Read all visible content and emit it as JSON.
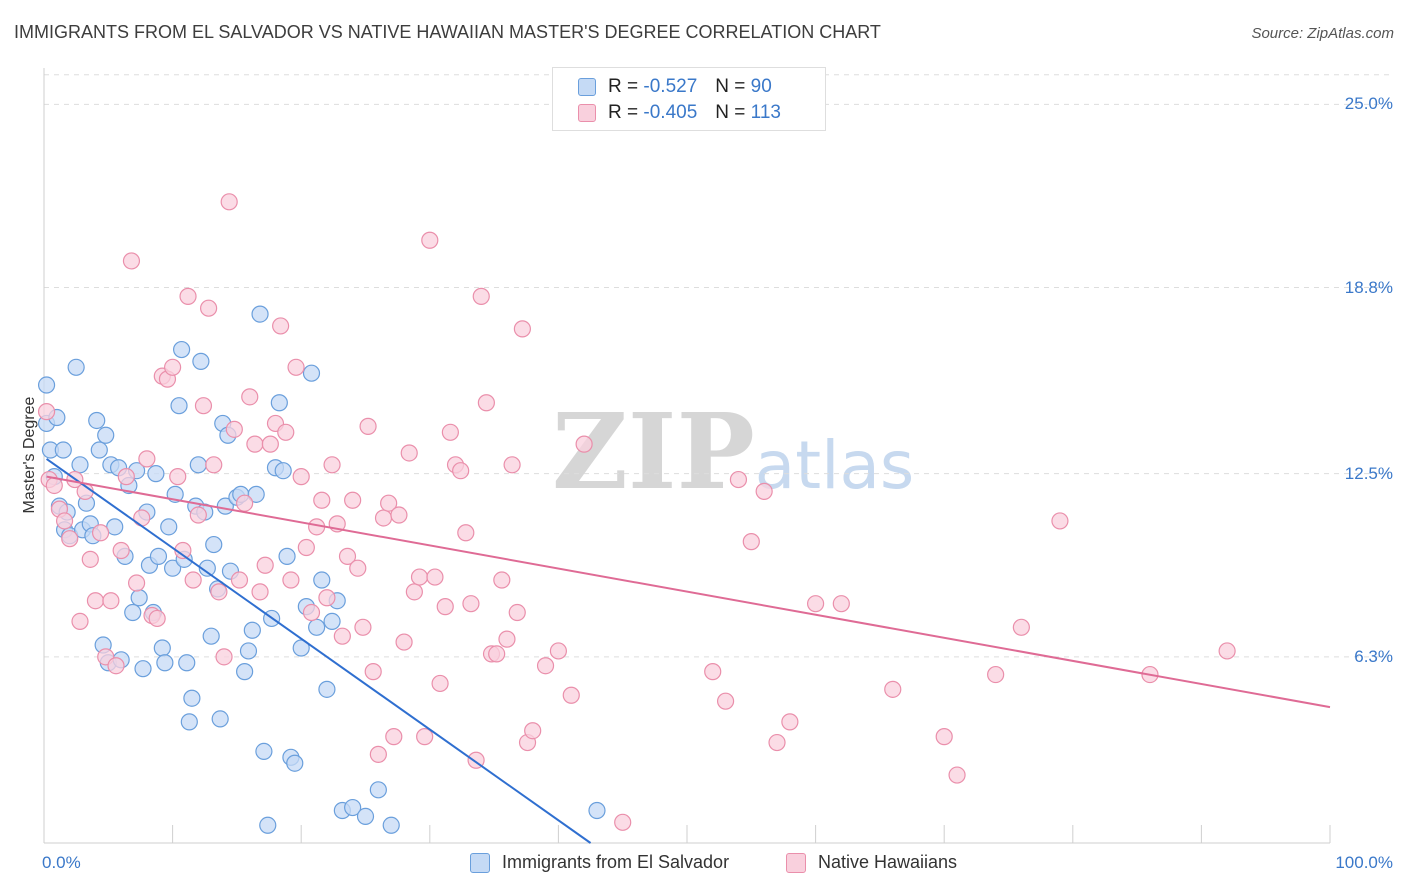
{
  "title": "IMMIGRANTS FROM EL SALVADOR VS NATIVE HAWAIIAN MASTER'S DEGREE CORRELATION CHART",
  "source": "Source: ZipAtlas.com",
  "watermark": {
    "zip": "ZIP",
    "atlas": "atlas"
  },
  "stats": [
    {
      "r_label": "R = ",
      "r_value": "-0.527",
      "n_label": "N = ",
      "n_value": "90"
    },
    {
      "r_label": "R = ",
      "r_value": "-0.405",
      "n_label": "N = ",
      "n_value": "113"
    }
  ],
  "colors": {
    "blue_fill": "#c5daf5",
    "blue_stroke": "#6a9fdc",
    "blue_line": "#2f6fd0",
    "pink_fill": "#f9d0dd",
    "pink_stroke": "#ea8fab",
    "pink_line": "#df6b95",
    "tick_text": "#3a78c9",
    "grid": "#dddddd"
  },
  "chart_data": {
    "type": "scatter",
    "title": "IMMIGRANTS FROM EL SALVADOR VS NATIVE HAWAIIAN MASTER'S DEGREE CORRELATION CHART",
    "xlabel": "",
    "ylabel": "Master's Degree",
    "xlim": [
      0,
      100
    ],
    "ylim": [
      0,
      26.5
    ],
    "x_tick_labels": [
      "0.0%",
      "100.0%"
    ],
    "y_ticks": [
      6.3,
      12.5,
      18.8,
      25.0
    ],
    "y_tick_labels": [
      "6.3%",
      "12.5%",
      "18.8%",
      "25.0%"
    ],
    "legend": [
      "Immigrants from El Salvador",
      "Native Hawaiians"
    ],
    "series": [
      {
        "name": "Immigrants from El Salvador",
        "trend": {
          "x": [
            0.2,
            42.5
          ],
          "y": [
            13.0,
            0
          ]
        },
        "points": [
          [
            0.2,
            15.5
          ],
          [
            0.2,
            14.2
          ],
          [
            0.5,
            13.3
          ],
          [
            0.8,
            12.4
          ],
          [
            1.0,
            14.4
          ],
          [
            1.2,
            11.4
          ],
          [
            1.5,
            13.3
          ],
          [
            1.6,
            10.6
          ],
          [
            1.8,
            11.2
          ],
          [
            2.0,
            10.4
          ],
          [
            2.5,
            16.1
          ],
          [
            2.8,
            12.8
          ],
          [
            3.0,
            10.6
          ],
          [
            3.3,
            11.5
          ],
          [
            3.6,
            10.8
          ],
          [
            3.8,
            10.4
          ],
          [
            4.1,
            14.3
          ],
          [
            4.3,
            13.3
          ],
          [
            4.6,
            6.7
          ],
          [
            4.8,
            13.8
          ],
          [
            5.0,
            6.1
          ],
          [
            5.2,
            12.8
          ],
          [
            5.5,
            10.7
          ],
          [
            5.8,
            12.7
          ],
          [
            6.0,
            6.2
          ],
          [
            6.3,
            9.7
          ],
          [
            6.6,
            12.1
          ],
          [
            6.9,
            7.8
          ],
          [
            7.2,
            12.6
          ],
          [
            7.4,
            8.3
          ],
          [
            7.7,
            5.9
          ],
          [
            8.0,
            11.2
          ],
          [
            8.2,
            9.4
          ],
          [
            8.5,
            7.8
          ],
          [
            8.7,
            12.5
          ],
          [
            8.9,
            9.7
          ],
          [
            9.2,
            6.6
          ],
          [
            9.4,
            6.1
          ],
          [
            9.7,
            10.7
          ],
          [
            10.0,
            9.3
          ],
          [
            10.2,
            11.8
          ],
          [
            10.5,
            14.8
          ],
          [
            10.7,
            16.7
          ],
          [
            10.9,
            9.6
          ],
          [
            11.1,
            6.1
          ],
          [
            11.3,
            4.1
          ],
          [
            11.5,
            4.9
          ],
          [
            11.8,
            11.4
          ],
          [
            12.0,
            12.8
          ],
          [
            12.2,
            16.3
          ],
          [
            12.5,
            11.2
          ],
          [
            12.7,
            9.3
          ],
          [
            13.0,
            7.0
          ],
          [
            13.2,
            10.1
          ],
          [
            13.5,
            8.6
          ],
          [
            13.7,
            4.2
          ],
          [
            13.9,
            14.2
          ],
          [
            14.1,
            11.4
          ],
          [
            14.3,
            13.8
          ],
          [
            14.5,
            9.2
          ],
          [
            15.0,
            11.7
          ],
          [
            15.3,
            11.8
          ],
          [
            15.6,
            5.8
          ],
          [
            15.9,
            6.5
          ],
          [
            16.2,
            7.2
          ],
          [
            16.5,
            11.8
          ],
          [
            16.8,
            17.9
          ],
          [
            17.1,
            3.1
          ],
          [
            17.4,
            0.6
          ],
          [
            17.7,
            7.6
          ],
          [
            18.0,
            12.7
          ],
          [
            18.3,
            14.9
          ],
          [
            18.6,
            12.6
          ],
          [
            18.9,
            9.7
          ],
          [
            19.2,
            2.9
          ],
          [
            19.5,
            2.7
          ],
          [
            20.0,
            6.6
          ],
          [
            20.4,
            8.0
          ],
          [
            20.8,
            15.9
          ],
          [
            21.2,
            7.3
          ],
          [
            21.6,
            8.9
          ],
          [
            22.0,
            5.2
          ],
          [
            22.4,
            7.5
          ],
          [
            22.8,
            8.2
          ],
          [
            23.2,
            1.1
          ],
          [
            24.0,
            1.2
          ],
          [
            25.0,
            0.9
          ],
          [
            26.0,
            1.8
          ],
          [
            27.0,
            0.6
          ],
          [
            43.0,
            1.1
          ]
        ]
      },
      {
        "name": "Native Hawaiians",
        "trend": {
          "x": [
            0.2,
            100
          ],
          "y": [
            12.4,
            4.6
          ]
        },
        "points": [
          [
            0.2,
            14.6
          ],
          [
            0.4,
            12.3
          ],
          [
            0.8,
            12.1
          ],
          [
            1.2,
            11.3
          ],
          [
            1.6,
            10.9
          ],
          [
            2.0,
            10.3
          ],
          [
            2.4,
            12.3
          ],
          [
            2.8,
            7.5
          ],
          [
            3.2,
            11.9
          ],
          [
            3.6,
            9.6
          ],
          [
            4.0,
            8.2
          ],
          [
            4.4,
            10.5
          ],
          [
            4.8,
            6.3
          ],
          [
            5.2,
            8.2
          ],
          [
            5.6,
            6.0
          ],
          [
            6.0,
            9.9
          ],
          [
            6.4,
            12.4
          ],
          [
            6.8,
            19.7
          ],
          [
            7.2,
            8.8
          ],
          [
            7.6,
            11.0
          ],
          [
            8.0,
            13.0
          ],
          [
            8.4,
            7.7
          ],
          [
            8.8,
            7.6
          ],
          [
            9.2,
            15.8
          ],
          [
            9.6,
            15.7
          ],
          [
            10.0,
            16.1
          ],
          [
            10.4,
            12.4
          ],
          [
            10.8,
            9.9
          ],
          [
            11.2,
            18.5
          ],
          [
            11.6,
            8.9
          ],
          [
            12.0,
            11.1
          ],
          [
            12.4,
            14.8
          ],
          [
            12.8,
            18.1
          ],
          [
            13.2,
            12.8
          ],
          [
            13.6,
            8.5
          ],
          [
            14.0,
            6.3
          ],
          [
            14.4,
            21.7
          ],
          [
            14.8,
            14.0
          ],
          [
            15.2,
            8.9
          ],
          [
            15.6,
            11.5
          ],
          [
            16.0,
            15.1
          ],
          [
            16.4,
            13.5
          ],
          [
            16.8,
            8.5
          ],
          [
            17.2,
            9.4
          ],
          [
            17.6,
            13.5
          ],
          [
            18.0,
            14.2
          ],
          [
            18.4,
            17.5
          ],
          [
            18.8,
            13.9
          ],
          [
            19.2,
            8.9
          ],
          [
            19.6,
            16.1
          ],
          [
            20.0,
            12.4
          ],
          [
            20.4,
            10.0
          ],
          [
            20.8,
            7.8
          ],
          [
            21.2,
            10.7
          ],
          [
            21.6,
            11.6
          ],
          [
            22.0,
            8.3
          ],
          [
            22.4,
            12.8
          ],
          [
            22.8,
            10.8
          ],
          [
            23.2,
            7.0
          ],
          [
            23.6,
            9.7
          ],
          [
            24.0,
            11.6
          ],
          [
            24.4,
            9.3
          ],
          [
            24.8,
            7.3
          ],
          [
            25.2,
            14.1
          ],
          [
            25.6,
            5.8
          ],
          [
            26.0,
            3.0
          ],
          [
            26.4,
            11.0
          ],
          [
            26.8,
            11.5
          ],
          [
            27.2,
            3.6
          ],
          [
            27.6,
            11.1
          ],
          [
            28.0,
            6.8
          ],
          [
            28.4,
            13.2
          ],
          [
            28.8,
            8.5
          ],
          [
            29.2,
            9.0
          ],
          [
            29.6,
            3.6
          ],
          [
            30.0,
            20.4
          ],
          [
            30.4,
            9.0
          ],
          [
            30.8,
            5.4
          ],
          [
            31.2,
            8.0
          ],
          [
            31.6,
            13.9
          ],
          [
            32.0,
            12.8
          ],
          [
            32.4,
            12.6
          ],
          [
            32.8,
            10.5
          ],
          [
            33.2,
            8.1
          ],
          [
            33.6,
            2.8
          ],
          [
            34.0,
            18.5
          ],
          [
            34.4,
            14.9
          ],
          [
            34.8,
            6.4
          ],
          [
            35.2,
            6.4
          ],
          [
            35.6,
            8.9
          ],
          [
            36.0,
            6.9
          ],
          [
            36.4,
            12.8
          ],
          [
            36.8,
            7.8
          ],
          [
            37.2,
            17.4
          ],
          [
            37.6,
            3.4
          ],
          [
            38.0,
            3.8
          ],
          [
            39.0,
            6.0
          ],
          [
            40.0,
            6.5
          ],
          [
            41.0,
            5.0
          ],
          [
            42.0,
            13.5
          ],
          [
            45.0,
            0.7
          ],
          [
            52.0,
            5.8
          ],
          [
            53.0,
            4.8
          ],
          [
            54.0,
            12.3
          ],
          [
            55.0,
            10.2
          ],
          [
            56.0,
            11.9
          ],
          [
            57.0,
            3.4
          ],
          [
            58.0,
            4.1
          ],
          [
            60.0,
            8.1
          ],
          [
            62.0,
            8.1
          ],
          [
            66.0,
            5.2
          ],
          [
            70.0,
            3.6
          ],
          [
            71.0,
            2.3
          ]
        ]
      }
    ]
  },
  "extra_pink_points": [
    [
      76.0,
      7.3
    ],
    [
      79.0,
      10.9
    ],
    [
      86.0,
      5.7
    ],
    [
      92.0,
      6.5
    ],
    [
      74.0,
      5.7
    ]
  ]
}
